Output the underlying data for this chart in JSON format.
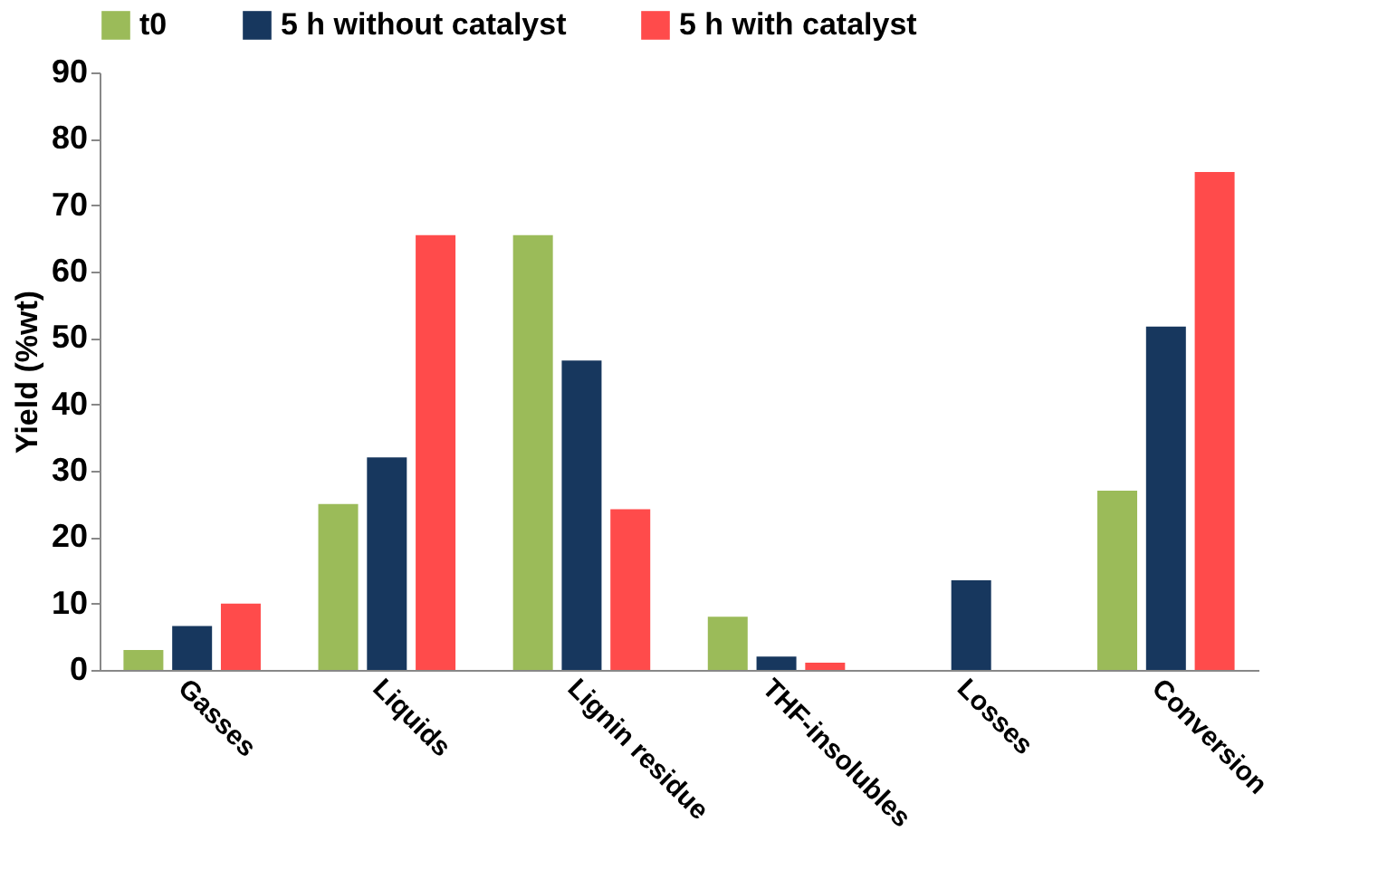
{
  "chart_data": {
    "type": "bar",
    "ylabel": "Yield (%wt)",
    "categories": [
      "Gasses",
      "Liquids",
      "Lignin residue",
      "THF-insolubles",
      "Losses",
      "Conversion"
    ],
    "series": [
      {
        "name": "t0",
        "color": "#9bbb59",
        "values": [
          3,
          25,
          65.5,
          8,
          null,
          27
        ]
      },
      {
        "name": "5 h without catalyst",
        "color": "#17375e",
        "values": [
          6.6,
          32,
          46.6,
          2,
          13.5,
          51.7
        ]
      },
      {
        "name": "5 h with catalyst",
        "color": "#ff4b4b",
        "values": [
          10,
          65.5,
          24.2,
          1.1,
          null,
          75
        ]
      }
    ],
    "ylim": [
      0,
      90
    ],
    "yticks": [
      0,
      10,
      20,
      30,
      40,
      50,
      60,
      70,
      80,
      90
    ],
    "grid": false,
    "legend": "top"
  }
}
